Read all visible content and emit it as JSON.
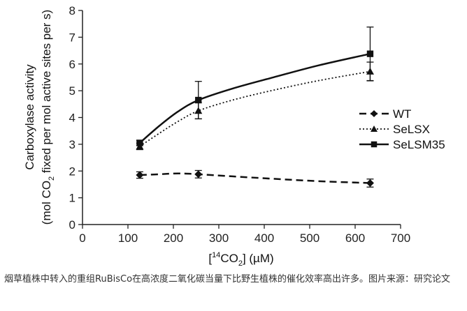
{
  "chart_data": {
    "type": "line",
    "xlabel": "[14CO2] (µM)",
    "ylabel_line1": "Carboxylase activity",
    "ylabel_line2": "(mol CO2 fixed per mol active sites per s)",
    "xlim": [
      0,
      700
    ],
    "ylim": [
      0,
      8
    ],
    "x_ticks": [
      "0",
      "100",
      "200",
      "300",
      "400",
      "500",
      "600",
      "700"
    ],
    "y_ticks": [
      "0",
      "1",
      "2",
      "3",
      "4",
      "5",
      "6",
      "7",
      "8"
    ],
    "grid": false,
    "legend_position": "right",
    "series": [
      {
        "name": "WT",
        "marker": "diamond",
        "line": "dashed",
        "color": "#111111",
        "x": [
          126,
          255,
          633
        ],
        "y": [
          1.85,
          1.88,
          1.55
        ],
        "err": [
          0.12,
          0.14,
          0.15
        ],
        "curve": [
          [
            126,
            1.85
          ],
          [
            170,
            1.88
          ],
          [
            210,
            1.91
          ],
          [
            255,
            1.88
          ],
          [
            330,
            1.8
          ],
          [
            420,
            1.71
          ],
          [
            520,
            1.62
          ],
          [
            633,
            1.55
          ]
        ]
      },
      {
        "name": "SeLSX",
        "marker": "triangle",
        "line": "dotted",
        "color": "#111111",
        "x": [
          126,
          255,
          633
        ],
        "y": [
          2.92,
          4.25,
          5.72
        ],
        "err": [
          0.12,
          0.3,
          0.35
        ],
        "curve": [
          [
            126,
            2.92
          ],
          [
            170,
            3.42
          ],
          [
            210,
            3.85
          ],
          [
            255,
            4.25
          ],
          [
            330,
            4.65
          ],
          [
            420,
            5.02
          ],
          [
            520,
            5.38
          ],
          [
            633,
            5.72
          ]
        ]
      },
      {
        "name": "SeLSM35",
        "marker": "square",
        "line": "solid",
        "color": "#111111",
        "x": [
          126,
          255,
          633
        ],
        "y": [
          3.05,
          4.65,
          6.38
        ],
        "err": [
          0.1,
          0.7,
          1.0
        ],
        "curve": [
          [
            126,
            3.05
          ],
          [
            170,
            3.7
          ],
          [
            210,
            4.22
          ],
          [
            255,
            4.65
          ],
          [
            330,
            5.08
          ],
          [
            420,
            5.5
          ],
          [
            520,
            5.95
          ],
          [
            633,
            6.38
          ]
        ]
      }
    ]
  },
  "caption": "烟草植株中转入的重组RuBisCo在高浓度二氧化碳当量下比野生植株的催化效率高出许多。图片来源：研究论文"
}
